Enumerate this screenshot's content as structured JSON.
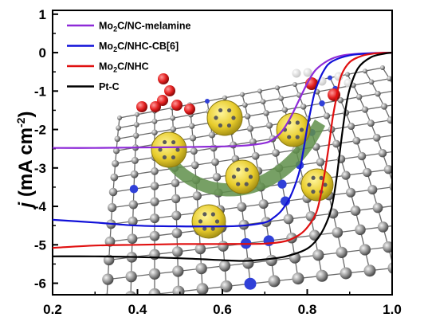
{
  "chart_data": {
    "type": "line",
    "xlabel": "",
    "ylabel": "j (mA cm⁻²)",
    "ylabel_italic_part": "j",
    "ylabel_rest": " (mA cm",
    "ylabel_sup": "-2",
    "ylabel_close": ")",
    "xlim": [
      0.2,
      1.0
    ],
    "ylim": [
      -6.3,
      1.1
    ],
    "x_ticks": [
      "0.2",
      "0.4",
      "0.6",
      "0.8",
      "1.0"
    ],
    "x_tick_values": [
      0.2,
      0.4,
      0.6,
      0.8,
      1.0
    ],
    "y_ticks": [
      "1",
      "0",
      "-1",
      "-2",
      "-3",
      "-4",
      "-5",
      "-6"
    ],
    "y_tick_values": [
      1,
      0,
      -1,
      -2,
      -3,
      -4,
      -5,
      -6
    ],
    "grid": false,
    "legend_position": "top-left",
    "series": [
      {
        "name": "Mo2C/NC-melamine",
        "legend_main": "Mo",
        "legend_sub": "2",
        "legend_rest": "C/NC-melamine",
        "color": "#8e2bd8",
        "x": [
          0.2,
          0.3,
          0.4,
          0.5,
          0.6,
          0.65,
          0.7,
          0.72,
          0.74,
          0.76,
          0.78,
          0.8,
          0.82,
          0.85,
          0.88,
          0.92,
          0.96,
          1.0
        ],
        "y": [
          -2.48,
          -2.48,
          -2.47,
          -2.46,
          -2.44,
          -2.42,
          -2.35,
          -2.25,
          -2.05,
          -1.7,
          -1.25,
          -0.8,
          -0.45,
          -0.2,
          -0.08,
          -0.03,
          -0.01,
          0.0
        ]
      },
      {
        "name": "Mo2C/NHC-CB[6]",
        "legend_main": "Mo",
        "legend_sub": "2",
        "legend_rest": "C/NHC-CB[6]",
        "color": "#1010d8",
        "x": [
          0.2,
          0.3,
          0.4,
          0.5,
          0.6,
          0.65,
          0.7,
          0.72,
          0.74,
          0.76,
          0.78,
          0.79,
          0.8,
          0.81,
          0.82,
          0.84,
          0.86,
          0.9,
          0.95,
          1.0
        ],
        "y": [
          -4.35,
          -4.42,
          -4.5,
          -4.52,
          -4.52,
          -4.5,
          -4.42,
          -4.3,
          -4.1,
          -3.75,
          -3.15,
          -2.6,
          -1.95,
          -1.4,
          -0.95,
          -0.45,
          -0.22,
          -0.07,
          -0.02,
          0.0
        ]
      },
      {
        "name": "Mo2C/NHC",
        "legend_main": "Mo",
        "legend_sub": "2",
        "legend_rest": "C/NHC",
        "color": "#e01010",
        "x": [
          0.2,
          0.3,
          0.4,
          0.5,
          0.6,
          0.7,
          0.75,
          0.78,
          0.8,
          0.82,
          0.83,
          0.84,
          0.85,
          0.86,
          0.87,
          0.88,
          0.9,
          0.93,
          0.96,
          1.0
        ],
        "y": [
          -5.08,
          -5.02,
          -5.0,
          -4.98,
          -4.98,
          -4.97,
          -4.9,
          -4.75,
          -4.55,
          -4.2,
          -3.8,
          -3.2,
          -2.5,
          -1.7,
          -1.1,
          -0.6,
          -0.25,
          -0.08,
          -0.02,
          0.0
        ]
      },
      {
        "name": "Pt-C",
        "legend_main": "Pt-C",
        "legend_sub": "",
        "legend_rest": "",
        "color": "#000000",
        "x": [
          0.2,
          0.3,
          0.4,
          0.5,
          0.6,
          0.65,
          0.7,
          0.75,
          0.8,
          0.83,
          0.85,
          0.86,
          0.87,
          0.88,
          0.89,
          0.9,
          0.92,
          0.95,
          0.98,
          1.0
        ],
        "y": [
          -5.3,
          -5.3,
          -5.32,
          -5.35,
          -5.4,
          -5.42,
          -5.38,
          -5.3,
          -5.1,
          -4.75,
          -4.3,
          -3.9,
          -3.2,
          -2.3,
          -1.5,
          -0.95,
          -0.4,
          -0.12,
          -0.03,
          0.0
        ]
      }
    ]
  }
}
